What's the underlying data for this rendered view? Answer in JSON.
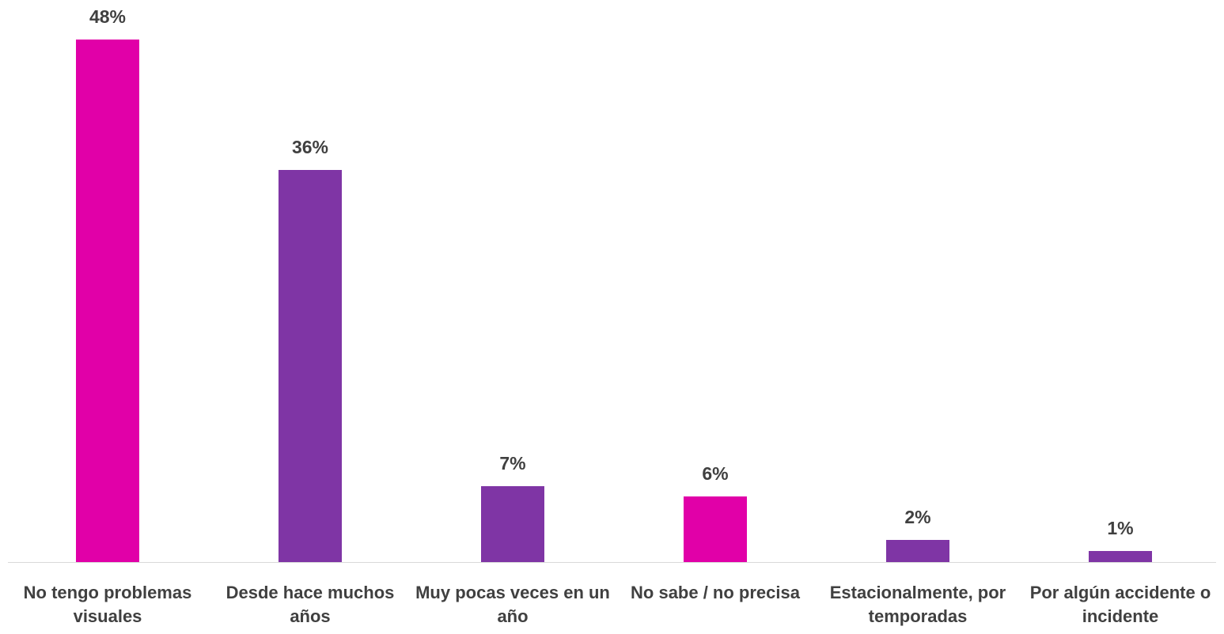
{
  "chart_data": {
    "type": "bar",
    "categories": [
      "No tengo problemas visuales",
      "Desde hace muchos años",
      "Muy pocas veces en un año",
      "No sabe / no precisa",
      "Estacionalmente, por temporadas",
      "Por algún accidente o incidente"
    ],
    "values": [
      48,
      36,
      7,
      6,
      2,
      1
    ],
    "value_labels": [
      "48%",
      "36%",
      "7%",
      "6%",
      "2%",
      "1%"
    ],
    "colors": [
      "#e100a8",
      "#7f35a5",
      "#7f35a5",
      "#e100a8",
      "#7f35a5",
      "#7f35a5"
    ],
    "ylim": [
      0,
      48
    ]
  }
}
